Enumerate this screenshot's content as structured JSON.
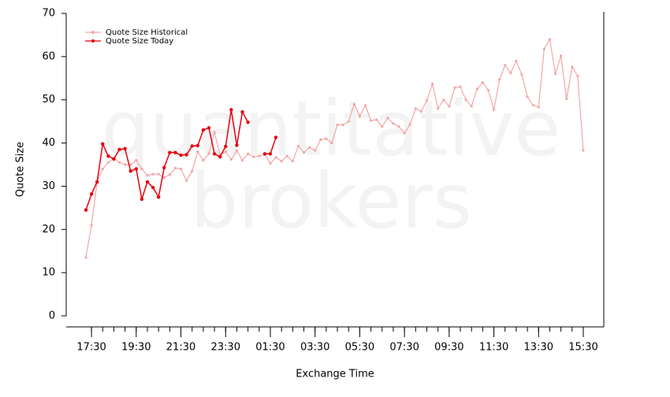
{
  "chart_data": {
    "type": "line",
    "watermark": [
      "quantitative",
      "brokers"
    ],
    "xlabel": "Exchange Time",
    "ylabel": "Quote Size",
    "categories": [
      null,
      "17:30",
      null,
      null,
      null,
      null,
      null,
      null,
      null,
      "19:30",
      null,
      null,
      null,
      null,
      null,
      null,
      null,
      "21:30",
      null,
      null,
      null,
      null,
      null,
      null,
      null,
      "23:30",
      null,
      null,
      null,
      null,
      null,
      null,
      null,
      "01:30",
      null,
      null,
      null,
      null,
      null,
      null,
      null,
      "03:30",
      null,
      null,
      null,
      null,
      null,
      null,
      null,
      "05:30",
      null,
      null,
      null,
      null,
      null,
      null,
      null,
      "07:30",
      null,
      null,
      null,
      null,
      null,
      null,
      null,
      "09:30",
      null,
      null,
      null,
      null,
      null,
      null,
      null,
      "11:30",
      null,
      null,
      null,
      null,
      null,
      null,
      null,
      "13:30",
      null,
      null,
      null,
      null,
      null,
      null,
      null,
      "15:30"
    ],
    "series": [
      {
        "name": "Quote Size Historical",
        "color": "#f4a6a6",
        "values": [
          13.5,
          21,
          31,
          34,
          35.5,
          36.5,
          35.5,
          35,
          35,
          36,
          34,
          32.5,
          32.8,
          32.8,
          32,
          32.7,
          34.2,
          34,
          31.3,
          33.5,
          38,
          36,
          37.5,
          42.5,
          37.2,
          38,
          36.2,
          38.2,
          36,
          37.5,
          36.8,
          37,
          37.3,
          35.3,
          36.7,
          35.8,
          37,
          35.8,
          39.3,
          37.8,
          39,
          38.3,
          40.8,
          41,
          40,
          44.2,
          44.2,
          45,
          49,
          46.2,
          48.7,
          45.2,
          45.4,
          43.8,
          45.8,
          44.5,
          43.8,
          42.3,
          44.3,
          48,
          47.3,
          49.8,
          53.7,
          48,
          50,
          48.5,
          52.8,
          53,
          50,
          48.5,
          52.5,
          54,
          52.2,
          47.7,
          54.7,
          58,
          56.2,
          59,
          55.8,
          50.7,
          48.8,
          48.3,
          61.8,
          64,
          56,
          60.2,
          50.2,
          57.6,
          55.5,
          38.3
        ]
      },
      {
        "name": "Quote Size Today",
        "color": "#e8000b",
        "values": [
          24.5,
          28.2,
          31,
          39.8,
          37,
          36.3,
          38.5,
          38.7,
          33.5,
          34,
          27,
          31,
          29.7,
          27.5,
          34.3,
          37.8,
          37.8,
          37.2,
          37.3,
          39.3,
          39.4,
          43,
          43.5,
          37.5,
          36.8,
          39.2,
          47.7,
          39.5,
          47.2,
          44.8,
          null,
          null,
          37.5,
          37.5,
          41.3,
          null,
          null,
          null,
          null,
          null,
          null,
          null,
          null,
          null,
          null,
          null,
          null,
          null,
          null,
          null,
          null,
          null,
          null,
          null,
          null,
          null,
          null,
          null,
          null,
          null,
          null,
          null,
          null,
          null,
          null,
          null,
          null,
          null,
          null,
          null,
          null,
          null,
          null,
          null,
          null,
          null,
          null,
          null,
          null,
          null,
          null,
          null,
          null,
          null,
          null,
          null,
          null,
          null,
          null,
          null
        ]
      }
    ],
    "ylim": [
      -3,
      70
    ],
    "yticks": [
      0,
      10,
      20,
      30,
      40,
      50,
      60,
      70
    ],
    "legend": "top-left"
  }
}
